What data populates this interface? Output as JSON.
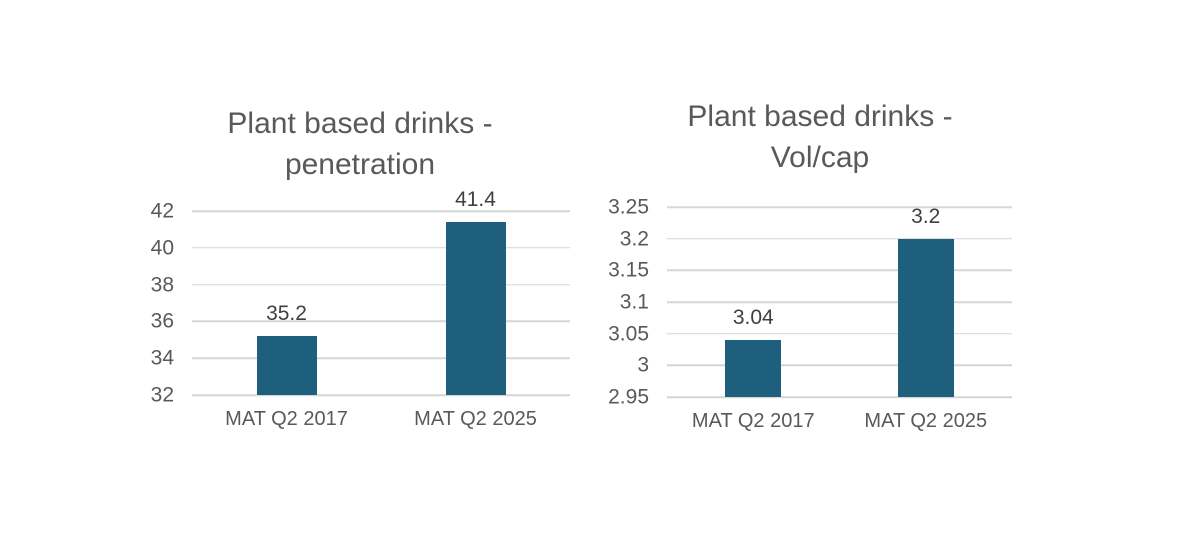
{
  "page": {
    "background": "#ffffff"
  },
  "chart_data": [
    {
      "type": "bar",
      "title": "Plant based drinks - penetration",
      "title_lines": [
        "Plant based drinks -",
        "penetration"
      ],
      "categories": [
        "MAT Q2 2017",
        "MAT Q2 2025"
      ],
      "values": [
        35.2,
        41.4
      ],
      "value_labels": [
        "35.2",
        "41.4"
      ],
      "ylim": [
        32,
        42
      ],
      "ytick_step": 2,
      "yticks": [
        42,
        40,
        38,
        36,
        34,
        32
      ],
      "ytick_labels": [
        "42",
        "40",
        "38",
        "36",
        "34",
        "32"
      ],
      "xlabel": "",
      "ylabel": "",
      "grid": true,
      "legend_position": "none",
      "bar_color": "#1e5f7e",
      "title_color": "#595959",
      "axis_color": "#595959",
      "value_label_color": "#404040",
      "gridline_color": "#d6d6d6"
    },
    {
      "type": "bar",
      "title": "Plant based drinks - Vol/cap",
      "title_lines": [
        "Plant based drinks -",
        "Vol/cap"
      ],
      "categories": [
        "MAT Q2 2017",
        "MAT Q2 2025"
      ],
      "values": [
        3.04,
        3.2
      ],
      "value_labels": [
        "3.04",
        "3.2"
      ],
      "ylim": [
        2.95,
        3.25
      ],
      "ytick_step": 0.05,
      "yticks": [
        3.25,
        3.2,
        3.15,
        3.1,
        3.05,
        3,
        2.95
      ],
      "ytick_labels": [
        "3.25",
        "3.2",
        "3.15",
        "3.1",
        "3.05",
        "3",
        "2.95"
      ],
      "xlabel": "",
      "ylabel": "",
      "grid": true,
      "legend_position": "none",
      "bar_color": "#1e5f7e",
      "title_color": "#595959",
      "axis_color": "#595959",
      "value_label_color": "#404040",
      "gridline_color": "#d6d6d6"
    }
  ]
}
